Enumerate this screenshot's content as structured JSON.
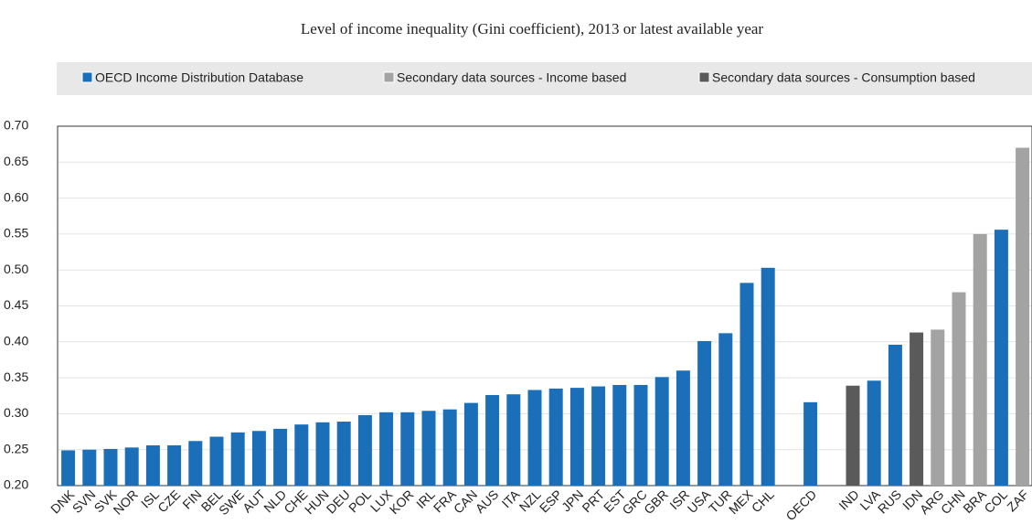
{
  "chart_data": {
    "type": "bar",
    "title": "Level of income inequality (Gini coefficient), 2013 or latest available year",
    "categories": [
      "DNK",
      "SVN",
      "SVK",
      "NOR",
      "ISL",
      "CZE",
      "FIN",
      "BEL",
      "SWE",
      "AUT",
      "NLD",
      "CHE",
      "HUN",
      "DEU",
      "POL",
      "LUX",
      "KOR",
      "IRL",
      "FRA",
      "CAN",
      "AUS",
      "ITA",
      "NZL",
      "ESP",
      "JPN",
      "PRT",
      "EST",
      "GRC",
      "GBR",
      "ISR",
      "USA",
      "TUR",
      "MEX",
      "CHL",
      null,
      "OECD",
      null,
      "IND",
      "LVA",
      "RUS",
      "IDN",
      "ARG",
      "CHN",
      "BRA",
      "COL",
      "ZAF"
    ],
    "series": [
      {
        "name": "OECD Income Distribution Database",
        "color": "#1a6fb8",
        "values": [
          0.249,
          0.25,
          0.251,
          0.253,
          0.256,
          0.256,
          0.262,
          0.268,
          0.274,
          0.276,
          0.279,
          0.285,
          0.288,
          0.289,
          0.298,
          0.302,
          0.302,
          0.304,
          0.306,
          0.315,
          0.326,
          0.327,
          0.333,
          0.335,
          0.336,
          0.338,
          0.34,
          0.34,
          0.351,
          0.36,
          0.401,
          0.412,
          0.482,
          0.503,
          null,
          0.316,
          null,
          null,
          0.346,
          0.396,
          null,
          null,
          null,
          null,
          0.556,
          null
        ]
      },
      {
        "name": "Secondary data sources - Income based",
        "color": "#a3a3a3",
        "values": [
          null,
          null,
          null,
          null,
          null,
          null,
          null,
          null,
          null,
          null,
          null,
          null,
          null,
          null,
          null,
          null,
          null,
          null,
          null,
          null,
          null,
          null,
          null,
          null,
          null,
          null,
          null,
          null,
          null,
          null,
          null,
          null,
          null,
          null,
          null,
          null,
          null,
          null,
          null,
          null,
          null,
          0.417,
          0.469,
          0.55,
          null,
          0.67
        ]
      },
      {
        "name": "Secondary data sources - Consumption based",
        "color": "#5a5a5a",
        "values": [
          null,
          null,
          null,
          null,
          null,
          null,
          null,
          null,
          null,
          null,
          null,
          null,
          null,
          null,
          null,
          null,
          null,
          null,
          null,
          null,
          null,
          null,
          null,
          null,
          null,
          null,
          null,
          null,
          null,
          null,
          null,
          null,
          null,
          null,
          null,
          null,
          null,
          0.339,
          null,
          null,
          0.413,
          null,
          null,
          null,
          null,
          null
        ]
      }
    ],
    "ylim": [
      0.2,
      0.7
    ],
    "yticks": [
      {
        "value": 0.2,
        "label": "0.20"
      },
      0.25,
      {
        "value": 0.3,
        "label": "0.30"
      },
      0.35,
      {
        "value": 0.4,
        "label": "0.40"
      },
      0.45,
      {
        "value": 0.5,
        "label": "0.50"
      },
      0.55,
      {
        "value": 0.6,
        "label": "0.60"
      },
      0.65,
      {
        "value": 0.7,
        "label": "0.70"
      }
    ],
    "grid": true
  }
}
